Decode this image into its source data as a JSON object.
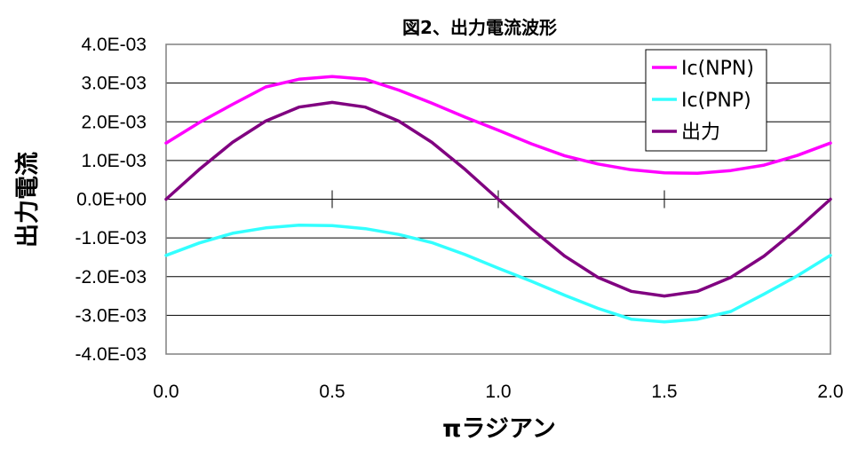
{
  "chart_data": {
    "type": "line",
    "title": "図2、出力電流波形",
    "xlabel": "πラジアン",
    "ylabel": "出力電流",
    "xlim": [
      0,
      2
    ],
    "ylim": [
      -0.004,
      0.004
    ],
    "x_ticks": [
      "0.0",
      "0.5",
      "1.0",
      "1.5",
      "2.0"
    ],
    "y_ticks": [
      "4.0E-03",
      "3.0E-03",
      "2.0E-03",
      "1.0E-03",
      "0.0E+00",
      "-1.0E-03",
      "-2.0E-03",
      "-3.0E-03",
      "-4.0E-03"
    ],
    "grid": "horizontal",
    "legend_position": "top-right",
    "x": [
      0,
      0.1,
      0.2,
      0.3,
      0.4,
      0.5,
      0.6,
      0.7,
      0.8,
      0.9,
      1.0,
      1.1,
      1.2,
      1.3,
      1.4,
      1.5,
      1.6,
      1.7,
      1.8,
      1.9,
      2.0
    ],
    "series": [
      {
        "name": "Ic(NPN)",
        "color": "#ff00ff",
        "values": [
          0.00145,
          0.00198,
          0.00245,
          0.0029,
          0.0031,
          0.00317,
          0.0031,
          0.00282,
          0.00248,
          0.00212,
          0.00178,
          0.00143,
          0.00112,
          0.00091,
          0.00076,
          0.00068,
          0.00067,
          0.00074,
          0.00088,
          0.00113,
          0.00145
        ]
      },
      {
        "name": "Ic(PNP)",
        "color": "#33ffff",
        "values": [
          -0.00145,
          -0.00113,
          -0.00088,
          -0.00074,
          -0.00067,
          -0.00068,
          -0.00076,
          -0.00091,
          -0.00112,
          -0.00143,
          -0.00178,
          -0.00212,
          -0.00248,
          -0.00282,
          -0.0031,
          -0.00317,
          -0.0031,
          -0.0029,
          -0.00245,
          -0.00198,
          -0.00145
        ]
      },
      {
        "name": "出力",
        "color": "#800080",
        "values": [
          0,
          0.00077,
          0.00147,
          0.00202,
          0.00238,
          0.0025,
          0.00238,
          0.00202,
          0.00147,
          0.00077,
          0,
          -0.00077,
          -0.00147,
          -0.00202,
          -0.00238,
          -0.0025,
          -0.00238,
          -0.00202,
          -0.00147,
          -0.00077,
          0
        ]
      }
    ]
  }
}
